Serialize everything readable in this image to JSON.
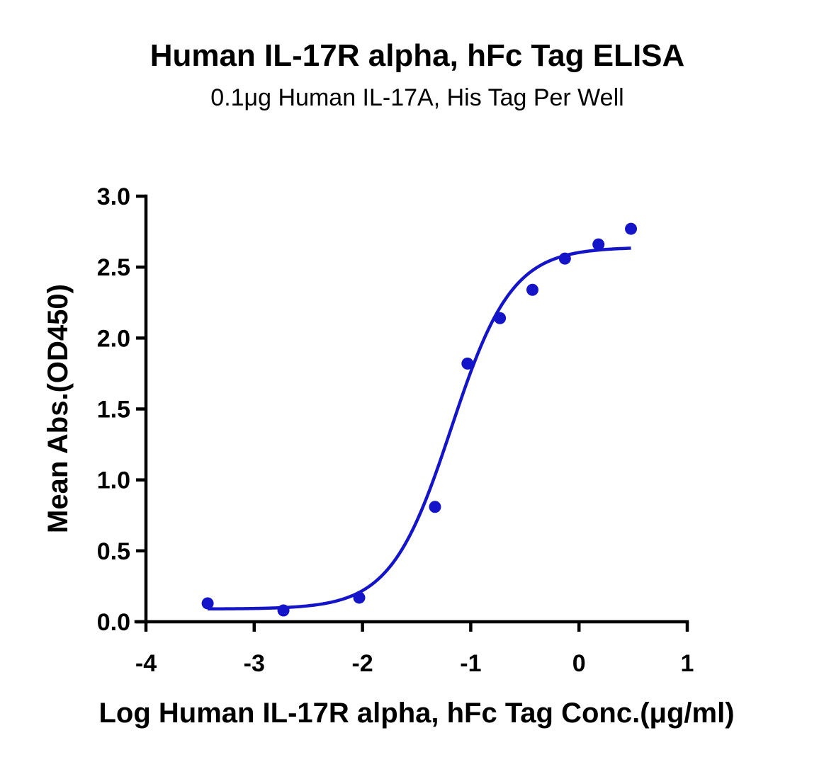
{
  "chart_data": {
    "type": "scatter",
    "title": "Human IL-17R alpha, hFc Tag ELISA",
    "subtitle": "0.1μg Human IL-17A, His Tag Per Well",
    "xlabel": "Log Human IL-17R alpha, hFc Tag Conc.(μg/ml)",
    "ylabel": "Mean Abs.(OD450)",
    "xlim": [
      -4,
      1
    ],
    "ylim": [
      0.0,
      3.0
    ],
    "xticks": [
      -4,
      -3,
      -2,
      -1,
      0,
      1
    ],
    "xtick_labels": [
      "-4",
      "-3",
      "-2",
      "-1",
      "0",
      "1"
    ],
    "yticks": [
      0.0,
      0.5,
      1.0,
      1.5,
      2.0,
      2.5,
      3.0
    ],
    "ytick_labels": [
      "0.0",
      "0.5",
      "1.0",
      "1.5",
      "2.0",
      "2.5",
      "3.0"
    ],
    "grid": false,
    "legend": "none",
    "color": "#1414c8",
    "series": [
      {
        "points": [
          {
            "x": -3.43,
            "y": 0.13
          },
          {
            "x": -2.73,
            "y": 0.08
          },
          {
            "x": -2.03,
            "y": 0.17
          },
          {
            "x": -1.33,
            "y": 0.81
          },
          {
            "x": -1.03,
            "y": 1.82
          },
          {
            "x": -0.73,
            "y": 2.14
          },
          {
            "x": -0.43,
            "y": 2.34
          },
          {
            "x": -0.13,
            "y": 2.56
          },
          {
            "x": 0.18,
            "y": 2.66
          },
          {
            "x": 0.48,
            "y": 2.77
          }
        ],
        "fit": {
          "model": "4PL",
          "bottom": 0.09,
          "top": 2.64,
          "logEC50": -1.18,
          "hill": 1.55,
          "x_range": [
            -3.43,
            0.48
          ]
        }
      }
    ]
  }
}
